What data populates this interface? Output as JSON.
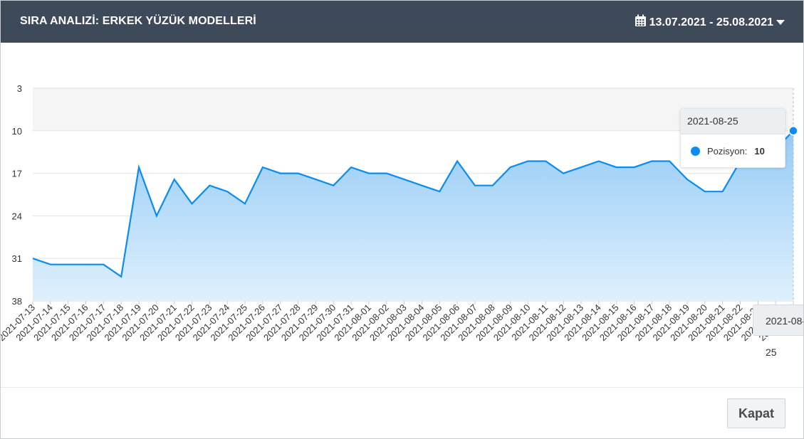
{
  "header": {
    "title": "SIRA ANALIZİ: ERKEK YÜZÜK MODELLERİ",
    "date_range": "13.07.2021 - 25.08.2021"
  },
  "footer": {
    "close_label": "Kapat"
  },
  "tooltip": {
    "date": "2021-08-25",
    "series_label": "Pozisyon:",
    "value": "10",
    "xaxis_label": "2021-08-25"
  },
  "colors": {
    "line": "#0a8cf0",
    "header_bg": "#3e4a5a"
  },
  "chart_data": {
    "type": "area",
    "reversed_y": true,
    "ylim": [
      3,
      38
    ],
    "yticks": [
      3,
      10,
      17,
      24,
      31,
      38
    ],
    "x": [
      "2021-07-13",
      "2021-07-14",
      "2021-07-15",
      "2021-07-16",
      "2021-07-17",
      "2021-07-18",
      "2021-07-19",
      "2021-07-20",
      "2021-07-21",
      "2021-07-22",
      "2021-07-23",
      "2021-07-24",
      "2021-07-25",
      "2021-07-26",
      "2021-07-27",
      "2021-07-28",
      "2021-07-29",
      "2021-07-30",
      "2021-07-31",
      "2021-08-01",
      "2021-08-02",
      "2021-08-03",
      "2021-08-04",
      "2021-08-05",
      "2021-08-06",
      "2021-08-07",
      "2021-08-08",
      "2021-08-09",
      "2021-08-10",
      "2021-08-11",
      "2021-08-12",
      "2021-08-13",
      "2021-08-14",
      "2021-08-15",
      "2021-08-16",
      "2021-08-17",
      "2021-08-18",
      "2021-08-19",
      "2021-08-20",
      "2021-08-21",
      "2021-08-22",
      "2021-08-23",
      "2021-08-24",
      "2021-08-25"
    ],
    "series": [
      {
        "name": "Pozisyon",
        "values": [
          31,
          32,
          32,
          32,
          32,
          34,
          16,
          24,
          18,
          22,
          19,
          20,
          22,
          16,
          17,
          17,
          18,
          19,
          16,
          17,
          17,
          18,
          19,
          20,
          15,
          19,
          19,
          16,
          15,
          15,
          17,
          16,
          15,
          16,
          16,
          15,
          15,
          18,
          20,
          20,
          15,
          14,
          13,
          10
        ]
      }
    ],
    "grid": true
  }
}
